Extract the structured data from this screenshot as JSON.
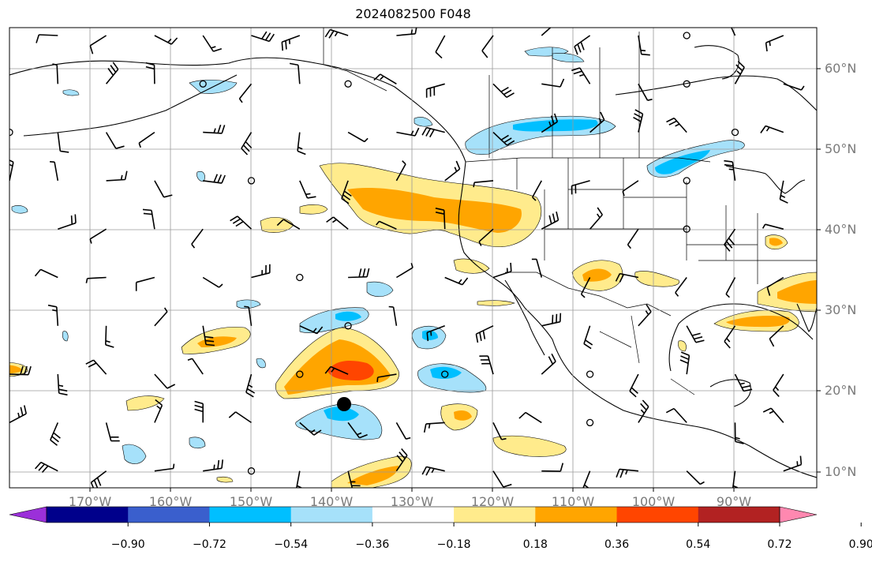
{
  "title": "2024082500 F048",
  "lat_labels": [
    "60°N",
    "50°N",
    "40°N",
    "30°N",
    "20°N",
    "10°N"
  ],
  "lon_labels": [
    "170°W",
    "160°W",
    "150°W",
    "140°W",
    "130°W",
    "120°W",
    "110°W",
    "100°W",
    "90°W"
  ],
  "colorbar": {
    "tick_labels": [
      "−0.90",
      "−0.72",
      "−0.54",
      "−0.36",
      "−0.18",
      "0.18",
      "0.36",
      "0.54",
      "0.72",
      "0.90"
    ],
    "colors": [
      "#9b30d9",
      "#00008b",
      "#3a5fcd",
      "#00bfff",
      "#a6e1fa",
      "#ffffff",
      "#ffeb8c",
      "#ffa500",
      "#ff4500",
      "#b22222",
      "#ff88b0"
    ]
  },
  "storm_marker": {
    "lat": 18.5,
    "lon": -138
  }
}
